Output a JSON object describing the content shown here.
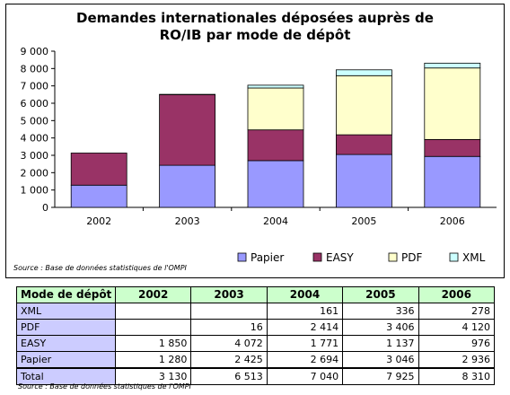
{
  "chart_data": {
    "type": "bar",
    "stacked": true,
    "title_lines": [
      "Demandes internationales déposées auprès de",
      "RO/IB par mode de dépôt"
    ],
    "categories": [
      "2002",
      "2003",
      "2004",
      "2005",
      "2006"
    ],
    "series": [
      {
        "name": "Papier",
        "color": "#9999ff",
        "values": [
          1280,
          2425,
          2694,
          3046,
          2936
        ]
      },
      {
        "name": "EASY",
        "color": "#993366",
        "values": [
          1850,
          4072,
          1771,
          1137,
          976
        ]
      },
      {
        "name": "PDF",
        "color": "#ffffcc",
        "values": [
          0,
          16,
          2414,
          3406,
          4120
        ]
      },
      {
        "name": "XML",
        "color": "#ccffff",
        "values": [
          0,
          0,
          161,
          336,
          278
        ]
      }
    ],
    "y_ticks": [
      "0",
      "1 000",
      "2 000",
      "3 000",
      "4 000",
      "5 000",
      "6 000",
      "7 000",
      "8 000",
      "9 000"
    ],
    "ylim": [
      0,
      9000
    ],
    "grid": false,
    "legend_position": "bottom",
    "source": "Source : Base de données statistiques de l'OMPI"
  },
  "table": {
    "header": [
      "Mode de dépôt",
      "2002",
      "2003",
      "2004",
      "2005",
      "2006"
    ],
    "rows": [
      [
        "XML",
        "",
        "",
        "161",
        "336",
        "278"
      ],
      [
        "PDF",
        "",
        "16",
        "2 414",
        "3 406",
        "4 120"
      ],
      [
        "EASY",
        "1 850",
        "4 072",
        "1 771",
        "1 137",
        "976"
      ],
      [
        "Papier",
        "1 280",
        "2 425",
        "2 694",
        "3 046",
        "2 936"
      ],
      [
        "Total",
        "3 130",
        "6 513",
        "7 040",
        "7 925",
        "8 310"
      ]
    ],
    "source": "Source : Base de données statistiques de l'OMPI"
  }
}
